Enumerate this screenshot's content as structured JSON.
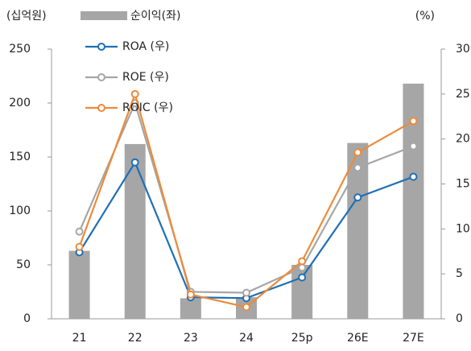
{
  "chart_data": {
    "type": "combo",
    "y_label": "(십억원)",
    "y2_label": "(%)",
    "categories": [
      "21",
      "22",
      "23",
      "24",
      "25p",
      "26E",
      "27E"
    ],
    "series": [
      {
        "name": "순이익(좌)",
        "type": "bar",
        "color": "#a6a6a6",
        "values": [
          63,
          162,
          19,
          20,
          50,
          163,
          218
        ]
      },
      {
        "name": "ROA (우)",
        "type": "line",
        "axis": "y2",
        "color": "#1f6fb5",
        "values": [
          7.4,
          17.4,
          2.4,
          2.3,
          4.6,
          13.5,
          15.8
        ]
      },
      {
        "name": "ROE (우)",
        "type": "line",
        "axis": "y2",
        "color": "#a6a6a6",
        "values": [
          9.7,
          24.0,
          3.0,
          2.9,
          5.7,
          16.8,
          19.2
        ]
      },
      {
        "name": "ROIC (우)",
        "type": "line",
        "axis": "y2",
        "color": "#ed8b3a",
        "values": [
          8.0,
          25.0,
          2.7,
          1.3,
          6.4,
          18.5,
          22.0
        ]
      }
    ],
    "ylim": [
      0,
      250
    ],
    "yticks": [
      0,
      50,
      100,
      150,
      200,
      250
    ],
    "y2lim": [
      0,
      30
    ],
    "y2ticks": [
      0,
      5,
      10,
      15,
      20,
      25,
      30
    ]
  }
}
